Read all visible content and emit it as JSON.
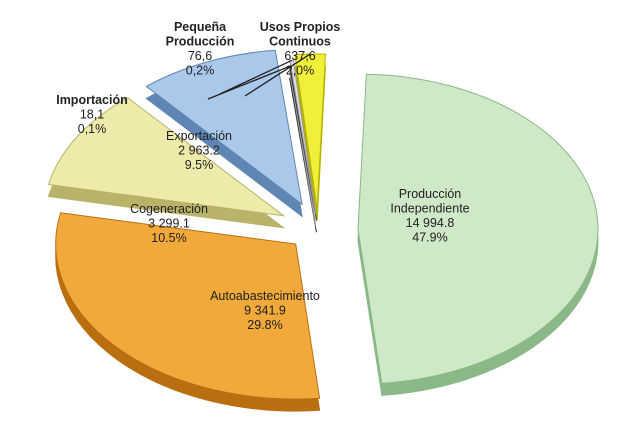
{
  "chart_data": {
    "type": "pie",
    "title": "",
    "slices": [
      {
        "label_lines": [
          "Producción",
          "Independiente"
        ],
        "value_text": "14 994.8",
        "pct_text": "47.9%",
        "value": 14994.8,
        "pct": 47.9,
        "color": "#cfe8c8",
        "dark": "#8ab886"
      },
      {
        "label_lines": [
          "Autoabastecimiento"
        ],
        "value_text": "9 341.9",
        "pct_text": "29.8%",
        "value": 9341.9,
        "pct": 29.8,
        "color": "#f2a93b",
        "dark": "#b96f10"
      },
      {
        "label_lines": [
          "Cogeneración"
        ],
        "value_text": "3 299.1",
        "pct_text": "10.5%",
        "value": 3299.1,
        "pct": 10.5,
        "color": "#eeeaaa",
        "dark": "#b9b36a"
      },
      {
        "label_lines": [
          "Exportación"
        ],
        "value_text": "2 963.2",
        "pct_text": "9.5%",
        "value": 2963.2,
        "pct": 9.5,
        "color": "#a9c8ea",
        "dark": "#5f86b3"
      },
      {
        "label_lines": [
          "Importación"
        ],
        "value_text": "18,1",
        "pct_text": "0,1%",
        "value": 18.1,
        "pct": 0.1,
        "color": "#555555",
        "dark": "#333333"
      },
      {
        "label_lines": [
          "Pequeña",
          "Producción"
        ],
        "value_text": "76,6",
        "pct_text": "0,2%",
        "value": 76.6,
        "pct": 0.2,
        "color": "#e0dede",
        "dark": "#9a9898"
      },
      {
        "label_lines": [
          "Usos Propios",
          "Continuos"
        ],
        "value_text": "637,6",
        "pct_text": "2,0%",
        "value": 637.6,
        "pct": 2.0,
        "color": "#f0ef3a",
        "dark": "#b7b400"
      }
    ]
  }
}
